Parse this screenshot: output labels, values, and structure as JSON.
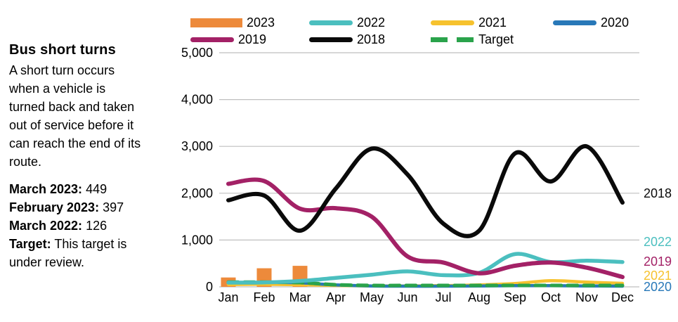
{
  "info": {
    "title": "Bus short turns",
    "description": "A short turn occurs\nwhen a vehicle is\nturned back and taken\nout of service before it\ncan reach the end of its\nroute.",
    "stats": [
      {
        "label": "March 2023:",
        "value": "449"
      },
      {
        "label": "February 2023:",
        "value": "397"
      },
      {
        "label": "March 2022:",
        "value": "126"
      }
    ],
    "target_label": "Target:",
    "target_text": "This target is\nunder review."
  },
  "legend": {
    "rows": [
      [
        "2023",
        "2022",
        "2021",
        "2020"
      ],
      [
        "2019",
        "2018",
        "Target"
      ]
    ]
  },
  "colors": {
    "grid": "#BFBFBF",
    "text": "#000000",
    "orange_2023": "#ED8A3B",
    "teal_2022": "#4BBFBF",
    "yellow_2021": "#F6C22E",
    "blue_2020": "#2878B8",
    "magenta_2019": "#A32166",
    "black_2018": "#0A0A0A",
    "green_target": "#2AA34B"
  },
  "chart_data": {
    "type": "line",
    "title": "Bus short turns by month",
    "categories": [
      "Jan",
      "Feb",
      "Mar",
      "Apr",
      "May",
      "Jun",
      "Jul",
      "Aug",
      "Sep",
      "Oct",
      "Nov",
      "Dec"
    ],
    "ylim": [
      0,
      5000
    ],
    "y_ticks": [
      0,
      1000,
      2000,
      3000,
      4000,
      5000
    ],
    "y_tick_labels": [
      "0",
      "1,000",
      "2,000",
      "3,000",
      "4,000",
      "5,000"
    ],
    "grid": true,
    "legend_position": "top",
    "draw_order": [
      "2023",
      "2021",
      "2020",
      "Target",
      "2022",
      "2019",
      "2018"
    ],
    "series": [
      {
        "name": "2023",
        "type": "bar",
        "color": "#ED8A3B",
        "values": [
          200,
          397,
          449,
          null,
          null,
          null,
          null,
          null,
          null,
          null,
          null,
          null
        ]
      },
      {
        "name": "2022",
        "type": "line",
        "color": "#4BBFBF",
        "end_label_at": 960,
        "values": [
          90,
          95,
          126,
          190,
          260,
          330,
          250,
          300,
          700,
          530,
          560,
          530
        ]
      },
      {
        "name": "2021",
        "type": "line",
        "color": "#F6C22E",
        "end_label_at": 240,
        "values": [
          50,
          55,
          45,
          30,
          20,
          20,
          25,
          40,
          70,
          130,
          100,
          75
        ]
      },
      {
        "name": "2020",
        "type": "line",
        "color": "#2878B8",
        "end_label_at": 0,
        "values": [
          95,
          95,
          85,
          40,
          20,
          15,
          15,
          20,
          25,
          25,
          20,
          15
        ]
      },
      {
        "name": "2019",
        "type": "line",
        "color": "#A32166",
        "end_label_at": 540,
        "values": [
          2200,
          2260,
          1670,
          1680,
          1500,
          650,
          520,
          290,
          450,
          520,
          410,
          210
        ]
      },
      {
        "name": "2018",
        "type": "line",
        "color": "#0A0A0A",
        "end_label_at": 2000,
        "values": [
          1850,
          1950,
          1200,
          2100,
          2950,
          2400,
          1350,
          1200,
          2850,
          2250,
          3000,
          1800
        ]
      },
      {
        "name": "Target",
        "type": "line",
        "color": "#2AA34B",
        "dashed": true,
        "values": [
          100,
          100,
          90,
          45,
          30,
          30,
          30,
          30,
          30,
          30,
          30,
          30
        ]
      }
    ]
  }
}
